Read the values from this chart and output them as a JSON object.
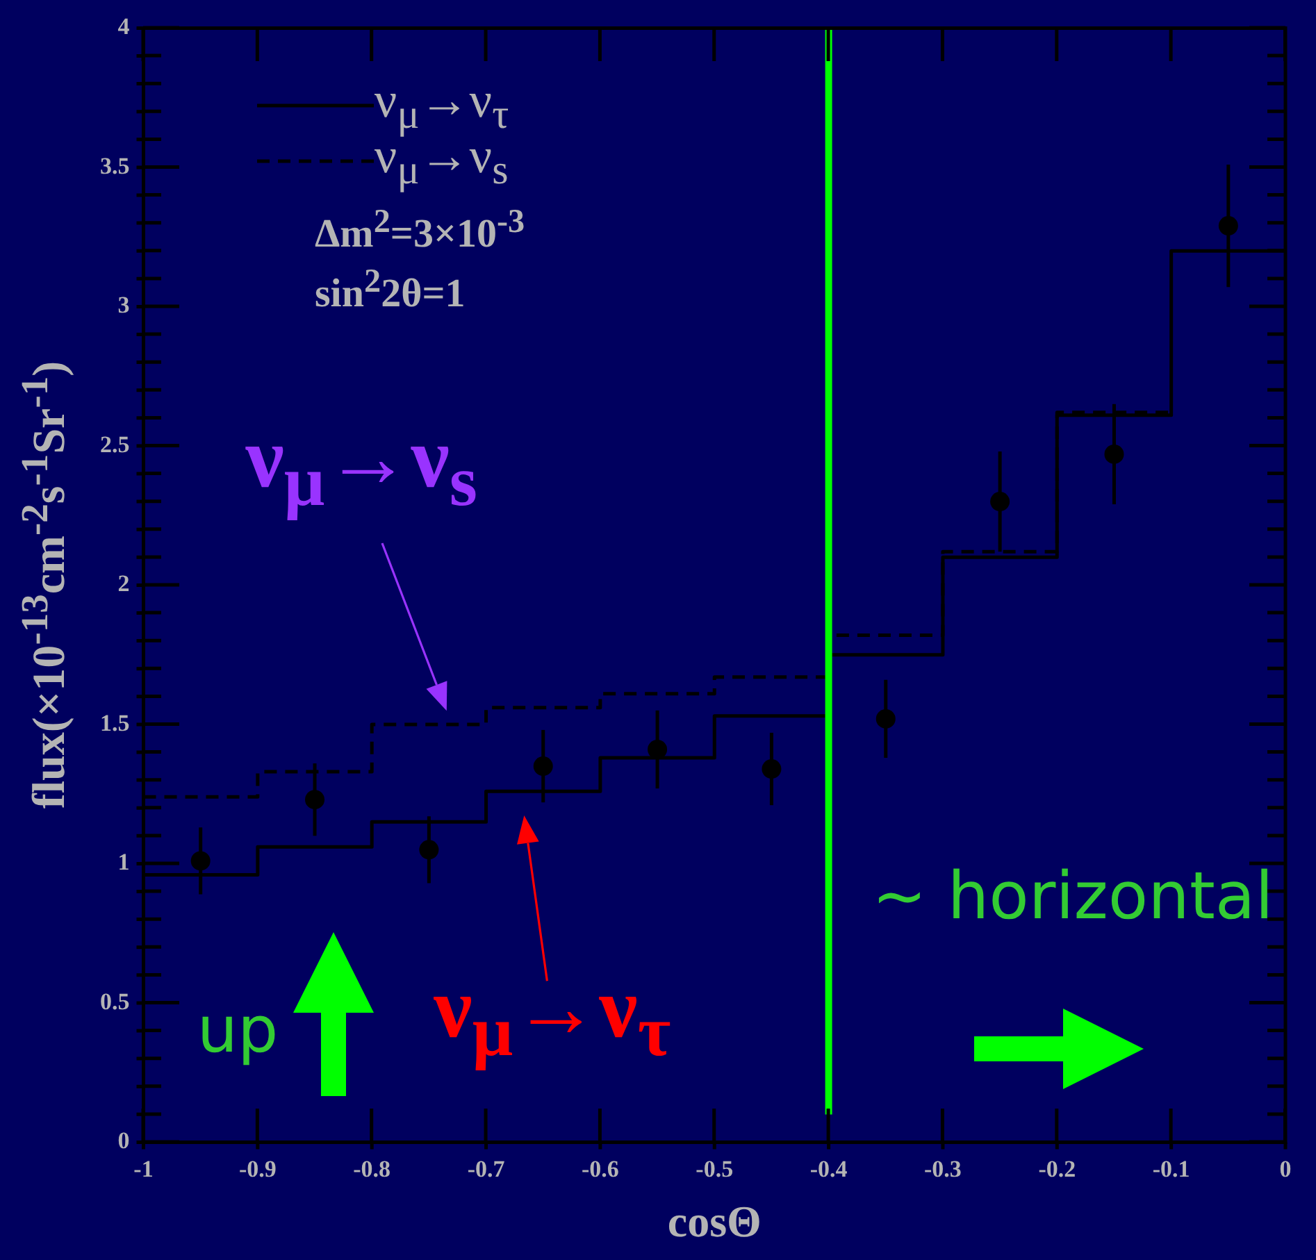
{
  "chart_data": {
    "type": "scatter",
    "xlabel": "cosΘ",
    "ylabel": "flux(×10$^{-13}$cm$^{-2}$s$^{-1}$Sr$^{-1}$)",
    "xlim": [
      -1,
      0
    ],
    "xticks": [
      -1,
      -0.9,
      -0.8,
      -0.7,
      -0.6,
      -0.5,
      -0.4,
      -0.3,
      -0.2,
      -0.1,
      0
    ],
    "ylim": [
      0,
      4
    ],
    "yticks": [
      0,
      {
        "value": 0.1,
        "label": null
      },
      {
        "value": 0.2,
        "label": null
      },
      {
        "value": 0.3,
        "label": null
      },
      {
        "value": 0.4,
        "label": null
      },
      0.5,
      {
        "value": 0.6,
        "label": null
      },
      {
        "value": 0.7,
        "label": null
      },
      {
        "value": 0.8,
        "label": null
      },
      {
        "value": 0.9,
        "label": null
      },
      1,
      {
        "value": 1.1,
        "label": null
      },
      {
        "value": 1.2,
        "label": null
      },
      {
        "value": 1.3,
        "label": null
      },
      {
        "value": 1.4,
        "label": null
      },
      1.5,
      {
        "value": 1.6,
        "label": null
      },
      {
        "value": 1.7,
        "label": null
      },
      {
        "value": 1.8,
        "label": null
      },
      {
        "value": 1.9,
        "label": null
      },
      2,
      {
        "value": 2.1,
        "label": null
      },
      {
        "value": 2.2,
        "label": null
      },
      {
        "value": 2.3,
        "label": null
      },
      {
        "value": 2.4,
        "label": null
      },
      2.5,
      {
        "value": 2.6,
        "label": null
      },
      {
        "value": 2.7,
        "label": null
      },
      {
        "value": 2.8,
        "label": null
      },
      {
        "value": 2.9,
        "label": null
      },
      3,
      {
        "value": 3.1,
        "label": null
      },
      {
        "value": 3.2,
        "label": null
      },
      {
        "value": 3.3,
        "label": null
      },
      {
        "value": 3.4,
        "label": null
      },
      3.5,
      {
        "value": 3.6,
        "label": null
      },
      {
        "value": 3.7,
        "label": null
      },
      {
        "value": 3.8,
        "label": null
      },
      {
        "value": 3.9,
        "label": null
      },
      4
    ],
    "legend": "top left",
    "series": [
      {
        "name": "ν$_{μ}$→ν$_{τ}$",
        "type": "step",
        "color": "#000000",
        "line_style": "solid",
        "x": [
          -1,
          -0.95,
          -0.85,
          -0.75,
          -0.65,
          -0.55,
          -0.45,
          -0.35,
          -0.25,
          -0.15,
          -0.05,
          0
        ],
        "values": [
          0.96,
          0.96,
          1.06,
          1.15,
          1.26,
          1.38,
          1.53,
          1.75,
          2.1,
          2.61,
          3.2,
          3.2
        ]
      },
      {
        "name": "ν$_{μ}$→ν$_{s}$",
        "type": "step",
        "color": "#000000",
        "line_style": "dashed",
        "x": [
          -1,
          -0.95,
          -0.85,
          -0.75,
          -0.65,
          -0.55,
          -0.45,
          -0.35,
          -0.25,
          -0.15,
          -0.1
        ],
        "values": [
          1.24,
          1.24,
          1.33,
          1.5,
          1.56,
          1.61,
          1.67,
          1.82,
          2.12,
          2.62,
          2.62
        ]
      },
      {
        "type": "scatter",
        "color": "#000000",
        "marker": "circle",
        "x": [
          -0.95,
          -0.85,
          -0.75,
          -0.65,
          -0.55,
          -0.45,
          -0.35,
          -0.25,
          -0.15,
          -0.05
        ],
        "values": [
          1.01,
          1.23,
          1.05,
          1.35,
          1.41,
          1.34,
          1.52,
          2.3,
          2.47,
          3.29
        ],
        "errors": [
          0.12,
          0.13,
          0.12,
          0.13,
          0.14,
          0.13,
          0.14,
          0.18,
          0.18,
          0.22
        ]
      }
    ],
    "ref_lines": [
      {
        "axis": "x",
        "value": -0.4,
        "color": "#00ff00"
      }
    ],
    "annotations": [
      "Δm$^{2}$=3×10$^{-3}$",
      "sin$^{2}$2θ=1",
      {
        "text": "ν$_{μ}$→ν$_{s}$",
        "x": -0.73,
        "y": 1.5
      },
      {
        "text": "ν$_{μ}$→ν$_{τ}$",
        "x": -0.67,
        "y": 1.26
      },
      "up",
      "~ horizontal"
    ]
  }
}
